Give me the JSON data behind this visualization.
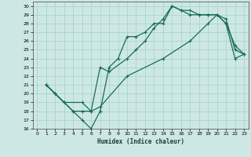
{
  "xlabel": "Humidex (Indice chaleur)",
  "background_color": "#cde8e4",
  "grid_color": "#a8d4ce",
  "line_color": "#1a6b5a",
  "xlim": [
    -0.5,
    23.5
  ],
  "ylim": [
    16,
    30.5
  ],
  "xticks": [
    0,
    1,
    2,
    3,
    4,
    5,
    6,
    7,
    8,
    9,
    10,
    11,
    12,
    13,
    14,
    15,
    16,
    17,
    18,
    19,
    20,
    21,
    22,
    23
  ],
  "yticks": [
    16,
    17,
    18,
    19,
    20,
    21,
    22,
    23,
    24,
    25,
    26,
    27,
    28,
    29,
    30
  ],
  "line1_x": [
    1,
    2,
    3,
    4,
    5,
    6,
    7,
    8,
    9,
    10,
    11,
    12,
    13,
    14,
    15,
    16,
    17,
    18,
    19,
    20,
    21,
    22,
    23
  ],
  "line1_y": [
    21,
    20,
    19,
    18,
    17,
    16,
    18,
    23,
    24,
    26.5,
    26.5,
    27,
    28,
    28,
    30,
    29.5,
    29,
    29,
    29,
    29,
    28.5,
    25,
    24.5
  ],
  "line2_x": [
    1,
    2,
    3,
    4,
    5,
    6,
    7,
    8,
    10,
    11,
    12,
    13,
    14,
    15,
    16,
    17,
    18,
    19,
    20,
    21,
    22,
    23
  ],
  "line2_y": [
    21,
    20,
    19,
    18,
    18,
    18,
    23,
    22.5,
    24,
    25,
    26,
    27.5,
    28.5,
    30,
    29.5,
    29.5,
    29,
    29,
    29,
    28,
    25.5,
    24.5
  ],
  "line3_x": [
    1,
    2,
    3,
    5,
    6,
    7,
    10,
    14,
    17,
    19,
    20,
    21,
    22,
    23
  ],
  "line3_y": [
    21,
    20,
    19,
    19,
    18,
    18.5,
    22,
    24,
    26,
    28,
    29,
    28,
    24,
    24.5
  ]
}
